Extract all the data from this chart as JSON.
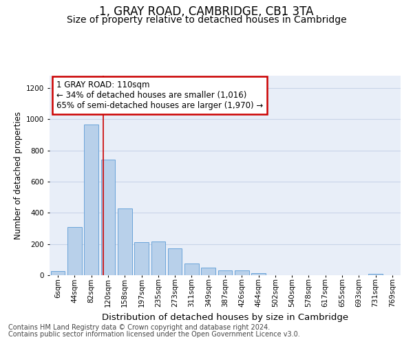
{
  "title": "1, GRAY ROAD, CAMBRIDGE, CB1 3TA",
  "subtitle": "Size of property relative to detached houses in Cambridge",
  "xlabel": "Distribution of detached houses by size in Cambridge",
  "ylabel": "Number of detached properties",
  "footer_line1": "Contains HM Land Registry data © Crown copyright and database right 2024.",
  "footer_line2": "Contains public sector information licensed under the Open Government Licence v3.0.",
  "categories": [
    "6sqm",
    "44sqm",
    "82sqm",
    "120sqm",
    "158sqm",
    "197sqm",
    "235sqm",
    "273sqm",
    "311sqm",
    "349sqm",
    "387sqm",
    "426sqm",
    "464sqm",
    "502sqm",
    "540sqm",
    "578sqm",
    "617sqm",
    "655sqm",
    "693sqm",
    "731sqm",
    "769sqm"
  ],
  "values": [
    25,
    310,
    965,
    740,
    430,
    210,
    215,
    170,
    75,
    50,
    32,
    32,
    15,
    0,
    0,
    0,
    0,
    0,
    0,
    10,
    0
  ],
  "bar_color": "#b8d0ea",
  "bar_edge_color": "#5b9bd5",
  "grid_color": "#c8d4e8",
  "background_color": "#e8eef8",
  "annotation_line1": "1 GRAY ROAD: 110sqm",
  "annotation_line2": "← 34% of detached houses are smaller (1,016)",
  "annotation_line3": "65% of semi-detached houses are larger (1,970) →",
  "vline_x": 2.72,
  "vline_color": "#cc0000",
  "annotation_box_facecolor": "#ffffff",
  "annotation_box_edgecolor": "#cc0000",
  "ylim": [
    0,
    1280
  ],
  "yticks": [
    0,
    200,
    400,
    600,
    800,
    1000,
    1200
  ],
  "title_fontsize": 12,
  "subtitle_fontsize": 10,
  "xlabel_fontsize": 9.5,
  "ylabel_fontsize": 8.5,
  "tick_fontsize": 7.5,
  "annot_fontsize": 8.5,
  "footer_fontsize": 7
}
